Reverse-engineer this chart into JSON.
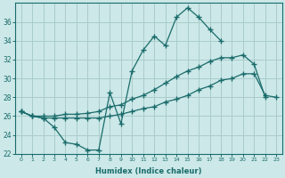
{
  "xlabel": "Humidex (Indice chaleur)",
  "bg_color": "#cce8e8",
  "grid_color": "#aacccc",
  "line_color": "#1a6b6b",
  "ylim": [
    22,
    38
  ],
  "xlim": [
    -0.5,
    23.5
  ],
  "yticks": [
    22,
    24,
    26,
    28,
    30,
    32,
    34,
    36
  ],
  "xticks": [
    0,
    1,
    2,
    3,
    4,
    5,
    6,
    7,
    8,
    9,
    10,
    11,
    12,
    13,
    14,
    15,
    16,
    17,
    18,
    19,
    20,
    21,
    22,
    23
  ],
  "series1_x": [
    0,
    1,
    2,
    3,
    4,
    5,
    6,
    7,
    8,
    9,
    10,
    11,
    12,
    13,
    14,
    15,
    16,
    17,
    18
  ],
  "series1_y": [
    26.5,
    26.0,
    25.8,
    24.8,
    23.2,
    23.0,
    22.4,
    22.4,
    28.5,
    25.2,
    30.8,
    33.0,
    34.5,
    33.5,
    36.5,
    37.5,
    36.5,
    35.2,
    34.0
  ],
  "series2_x": [
    0,
    1,
    2,
    3,
    4,
    5,
    6,
    7,
    8,
    9,
    10,
    11,
    12,
    13,
    14,
    15,
    16,
    17,
    18,
    19,
    20,
    21,
    22
  ],
  "series2_y": [
    26.5,
    26.0,
    26.0,
    26.0,
    26.2,
    26.2,
    26.3,
    26.5,
    27.0,
    27.2,
    27.8,
    28.2,
    28.8,
    29.5,
    30.2,
    30.8,
    31.2,
    31.8,
    32.2,
    32.2,
    32.5,
    31.5,
    28.0
  ],
  "series3_x": [
    0,
    1,
    2,
    3,
    4,
    5,
    6,
    7,
    8,
    9,
    10,
    11,
    12,
    13,
    14,
    15,
    16,
    17,
    18,
    19,
    20,
    21,
    22,
    23
  ],
  "series3_y": [
    26.5,
    26.0,
    25.8,
    25.8,
    25.8,
    25.8,
    25.8,
    25.8,
    26.0,
    26.2,
    26.5,
    26.8,
    27.0,
    27.5,
    27.8,
    28.2,
    28.8,
    29.2,
    29.8,
    30.0,
    30.5,
    30.5,
    28.2,
    28.0
  ]
}
